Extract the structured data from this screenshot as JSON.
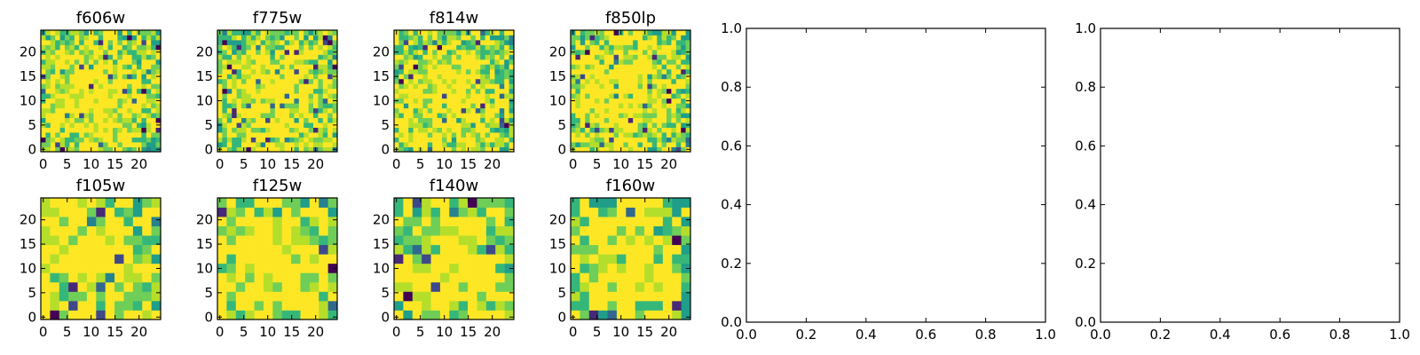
{
  "chart_data": [
    {
      "type": "heatmap",
      "title": "f606w",
      "colormap": "viridis",
      "xticks": [
        "0",
        "5",
        "10",
        "15",
        "20"
      ],
      "yticks": [
        "0",
        "5",
        "10",
        "15",
        "20"
      ],
      "xlim": [
        0,
        25
      ],
      "ylim": [
        0,
        25
      ],
      "grid_size": [
        25,
        25
      ],
      "hotspot": [
        11,
        11
      ]
    },
    {
      "type": "heatmap",
      "title": "f775w",
      "colormap": "viridis",
      "xticks": [
        "0",
        "5",
        "10",
        "15",
        "20"
      ],
      "yticks": [
        "0",
        "5",
        "10",
        "15",
        "20"
      ],
      "xlim": [
        0,
        25
      ],
      "ylim": [
        0,
        25
      ],
      "grid_size": [
        25,
        25
      ],
      "hotspot": [
        12,
        11
      ]
    },
    {
      "type": "heatmap",
      "title": "f814w",
      "colormap": "viridis",
      "xticks": [
        "0",
        "5",
        "10",
        "15",
        "20"
      ],
      "yticks": [
        "0",
        "5",
        "10",
        "15",
        "20"
      ],
      "xlim": [
        0,
        25
      ],
      "ylim": [
        0,
        25
      ],
      "grid_size": [
        25,
        25
      ],
      "hotspot": [
        11,
        11
      ]
    },
    {
      "type": "heatmap",
      "title": "f850lp",
      "colormap": "viridis",
      "xticks": [
        "0",
        "5",
        "10",
        "15",
        "20"
      ],
      "yticks": [
        "0",
        "5",
        "10",
        "15",
        "20"
      ],
      "xlim": [
        0,
        25
      ],
      "ylim": [
        0,
        25
      ],
      "grid_size": [
        25,
        25
      ],
      "hotspot": [
        11,
        12
      ]
    },
    {
      "type": "heatmap",
      "title": "f105w",
      "colormap": "viridis",
      "xticks": [
        "0",
        "5",
        "10",
        "15",
        "20"
      ],
      "yticks": [
        "0",
        "5",
        "10",
        "15",
        "20"
      ],
      "xlim": [
        0,
        25
      ],
      "ylim": [
        0,
        25
      ],
      "grid_size": [
        13,
        13
      ],
      "hotspot": [
        11,
        12
      ]
    },
    {
      "type": "heatmap",
      "title": "f125w",
      "colormap": "viridis",
      "xticks": [
        "0",
        "5",
        "10",
        "15",
        "20"
      ],
      "yticks": [
        "0",
        "5",
        "10",
        "15",
        "20"
      ],
      "xlim": [
        0,
        25
      ],
      "ylim": [
        0,
        25
      ],
      "grid_size": [
        13,
        13
      ],
      "hotspot": [
        12,
        11
      ]
    },
    {
      "type": "heatmap",
      "title": "f140w",
      "colormap": "viridis",
      "xticks": [
        "0",
        "5",
        "10",
        "15",
        "20"
      ],
      "yticks": [
        "0",
        "5",
        "10",
        "15",
        "20"
      ],
      "xlim": [
        0,
        25
      ],
      "ylim": [
        0,
        25
      ],
      "grid_size": [
        13,
        13
      ],
      "hotspot": [
        12,
        11
      ]
    },
    {
      "type": "heatmap",
      "title": "f160w",
      "colormap": "viridis",
      "xticks": [
        "0",
        "5",
        "10",
        "15",
        "20"
      ],
      "yticks": [
        "0",
        "5",
        "10",
        "15",
        "20"
      ],
      "xlim": [
        0,
        25
      ],
      "ylim": [
        0,
        25
      ],
      "grid_size": [
        13,
        13
      ],
      "hotspot": [
        12,
        12
      ]
    },
    {
      "type": "line",
      "title": "",
      "series": [],
      "xticks": [
        "0.0",
        "0.2",
        "0.4",
        "0.6",
        "0.8",
        "1.0"
      ],
      "yticks": [
        "0.0",
        "0.2",
        "0.4",
        "0.6",
        "0.8",
        "1.0"
      ],
      "xlim": [
        0,
        1
      ],
      "ylim": [
        0,
        1
      ]
    },
    {
      "type": "line",
      "title": "",
      "series": [],
      "xticks": [
        "0.0",
        "0.2",
        "0.4",
        "0.6",
        "0.8",
        "1.0"
      ],
      "yticks": [
        "0.0",
        "0.2",
        "0.4",
        "0.6",
        "0.8",
        "1.0"
      ],
      "xlim": [
        0,
        1
      ],
      "ylim": [
        0,
        1
      ]
    }
  ],
  "colors": {
    "viridis": [
      "#440154",
      "#482878",
      "#3e4989",
      "#31688e",
      "#26828e",
      "#1f9e89",
      "#35b779",
      "#6ece58",
      "#b5de2b",
      "#fde725"
    ]
  }
}
